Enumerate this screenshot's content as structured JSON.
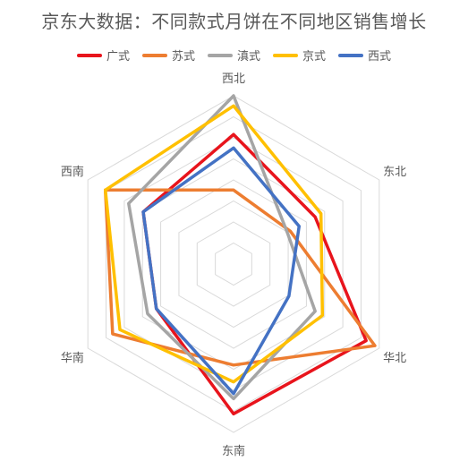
{
  "chart_data": {
    "type": "radar",
    "title": "京东大数据：不同款式月饼在不同地区销售增长",
    "categories": [
      "西北",
      "东北",
      "华北",
      "东南",
      "华南",
      "西南"
    ],
    "rmax": 100,
    "grid_levels": 8,
    "legend_position": "top",
    "series": [
      {
        "name": "广式",
        "color": "#e8141c",
        "values": [
          77,
          56,
          91,
          89,
          53,
          62
        ]
      },
      {
        "name": "苏式",
        "color": "#ed7d31",
        "values": [
          44,
          39,
          97,
          60,
          83,
          88
        ]
      },
      {
        "name": "滇式",
        "color": "#a5a5a5",
        "values": [
          100,
          37,
          56,
          80,
          59,
          72
        ]
      },
      {
        "name": "京式",
        "color": "#ffc000",
        "values": [
          94,
          60,
          61,
          70,
          78,
          88
        ]
      },
      {
        "name": "西式",
        "color": "#4472c4",
        "values": [
          69,
          45,
          38,
          77,
          53,
          62
        ]
      }
    ]
  }
}
